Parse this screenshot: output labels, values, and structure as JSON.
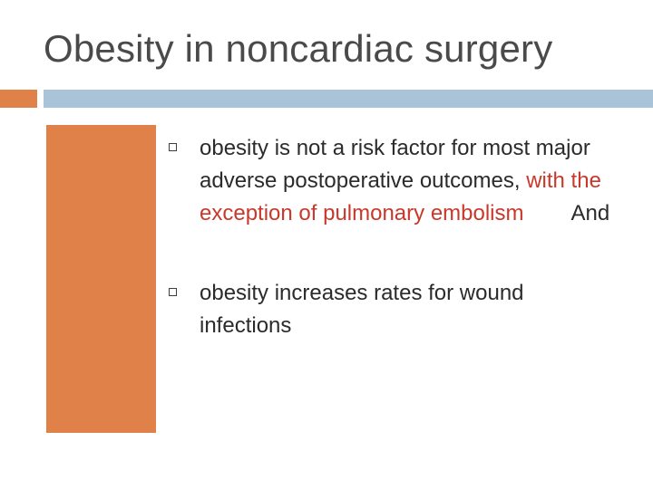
{
  "slide": {
    "title": "Obesity in noncardiac surgery"
  },
  "bullets": [
    {
      "text": "obesity is not a risk factor for most major adverse postoperative outcomes, ",
      "highlight": "with the exception of pulmonary embolism",
      "trailing": "And"
    },
    {
      "text": "obesity increases rates for wound infections"
    }
  ],
  "colors": {
    "accent_orange": "#DF8149",
    "accent_blue": "#A9C3D9",
    "highlight_red": "#C8392B",
    "title_gray": "#4A4A4A"
  },
  "icons": {
    "bullet": "hollow-square-bullet-icon"
  }
}
